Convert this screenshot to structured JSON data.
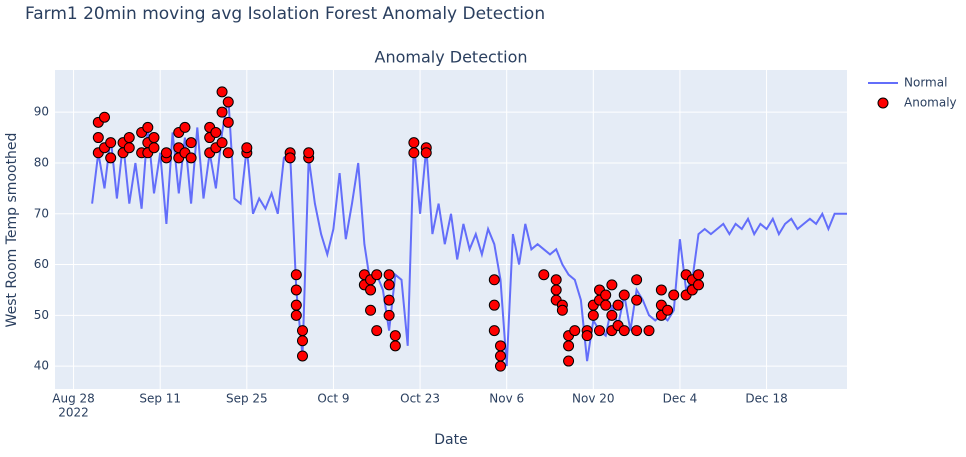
{
  "title": "Farm1 20min moving avg Isolation Forest Anomaly Detection",
  "chart_data": {
    "type": "line",
    "title": "Anomaly Detection",
    "x_label": "Date",
    "y_label": "West Room Temp smoothed",
    "xlim": [
      "2022-08-25",
      "2022-12-31"
    ],
    "ylim": [
      35.5,
      98.3
    ],
    "xticks": [
      {
        "value": "2022-08-28",
        "label": "Aug 28"
      },
      {
        "value": "2022-09-11",
        "label": "Sep 11"
      },
      {
        "value": "2022-09-25",
        "label": "Sep 25"
      },
      {
        "value": "2022-10-09",
        "label": "Oct 9"
      },
      {
        "value": "2022-10-23",
        "label": "Oct 23"
      },
      {
        "value": "2022-11-06",
        "label": "Nov 6"
      },
      {
        "value": "2022-11-20",
        "label": "Nov 20"
      },
      {
        "value": "2022-12-04",
        "label": "Dec 4"
      },
      {
        "value": "2022-12-18",
        "label": "Dec 18"
      }
    ],
    "x_tick_year": "2022",
    "yticks": [
      40,
      50,
      60,
      70,
      80,
      90
    ],
    "grid": true,
    "legend": "top-right",
    "series": [
      {
        "name": "Normal",
        "color": "#636efa",
        "mode": "lines",
        "x": [
          "2022-08-31",
          "2022-09-01",
          "2022-09-02",
          "2022-09-03",
          "2022-09-04",
          "2022-09-05",
          "2022-09-06",
          "2022-09-07",
          "2022-09-08",
          "2022-09-09",
          "2022-09-10",
          "2022-09-11",
          "2022-09-12",
          "2022-09-13",
          "2022-09-14",
          "2022-09-15",
          "2022-09-16",
          "2022-09-17",
          "2022-09-18",
          "2022-09-19",
          "2022-09-20",
          "2022-09-21",
          "2022-09-22",
          "2022-09-23",
          "2022-09-24",
          "2022-09-25",
          "2022-09-26",
          "2022-09-27",
          "2022-09-28",
          "2022-09-29",
          "2022-09-30",
          "2022-10-01",
          "2022-10-02",
          "2022-10-03",
          "2022-10-04",
          "2022-10-05",
          "2022-10-06",
          "2022-10-07",
          "2022-10-08",
          "2022-10-09",
          "2022-10-10",
          "2022-10-11",
          "2022-10-12",
          "2022-10-13",
          "2022-10-14",
          "2022-10-15",
          "2022-10-16",
          "2022-10-17",
          "2022-10-18",
          "2022-10-19",
          "2022-10-20",
          "2022-10-21",
          "2022-10-22",
          "2022-10-23",
          "2022-10-24",
          "2022-10-25",
          "2022-10-26",
          "2022-10-27",
          "2022-10-28",
          "2022-10-29",
          "2022-10-30",
          "2022-10-31",
          "2022-11-01",
          "2022-11-02",
          "2022-11-03",
          "2022-11-04",
          "2022-11-05",
          "2022-11-06",
          "2022-11-07",
          "2022-11-08",
          "2022-11-09",
          "2022-11-10",
          "2022-11-11",
          "2022-11-12",
          "2022-11-13",
          "2022-11-14",
          "2022-11-15",
          "2022-11-16",
          "2022-11-17",
          "2022-11-18",
          "2022-11-19",
          "2022-11-20",
          "2022-11-21",
          "2022-11-22",
          "2022-11-23",
          "2022-11-24",
          "2022-11-25",
          "2022-11-26",
          "2022-11-27",
          "2022-11-28",
          "2022-11-29",
          "2022-11-30",
          "2022-12-01",
          "2022-12-02",
          "2022-12-03",
          "2022-12-04",
          "2022-12-05",
          "2022-12-06",
          "2022-12-07",
          "2022-12-08",
          "2022-12-09",
          "2022-12-10",
          "2022-12-11",
          "2022-12-12",
          "2022-12-13",
          "2022-12-14",
          "2022-12-15",
          "2022-12-16",
          "2022-12-17",
          "2022-12-18",
          "2022-12-19",
          "2022-12-20",
          "2022-12-21",
          "2022-12-22",
          "2022-12-23",
          "2022-12-24",
          "2022-12-25",
          "2022-12-26",
          "2022-12-27",
          "2022-12-28",
          "2022-12-29",
          "2022-12-30",
          "2022-12-31"
        ],
        "values": [
          72,
          82,
          75,
          85,
          73,
          84,
          72,
          80,
          71,
          87,
          74,
          82,
          68,
          86,
          74,
          85,
          72,
          87,
          73,
          82,
          75,
          86,
          93,
          73,
          72,
          83,
          70,
          73,
          71,
          74,
          70,
          81,
          82,
          55,
          42,
          81,
          72,
          66,
          62,
          67,
          78,
          65,
          72,
          80,
          64,
          56,
          58,
          55,
          47,
          58,
          57,
          44,
          84,
          70,
          83,
          66,
          72,
          64,
          70,
          61,
          68,
          63,
          66,
          62,
          67,
          64,
          57,
          40,
          66,
          60,
          68,
          63,
          64,
          63,
          62,
          63,
          60,
          58,
          57,
          53,
          41,
          49,
          47,
          46,
          52,
          48,
          54,
          47,
          55,
          53,
          50,
          49,
          50,
          49,
          51,
          65,
          55,
          57,
          66,
          67,
          66,
          67,
          68,
          66,
          68,
          67,
          69,
          66,
          68,
          67,
          69,
          66,
          68,
          69,
          67,
          68,
          69,
          68,
          70,
          67,
          70,
          70,
          70
        ]
      },
      {
        "name": "Anomaly",
        "color": "#ff0000",
        "mode": "markers",
        "x": [
          "2022-09-01",
          "2022-09-01",
          "2022-09-01",
          "2022-09-02",
          "2022-09-02",
          "2022-09-03",
          "2022-09-03",
          "2022-09-05",
          "2022-09-05",
          "2022-09-06",
          "2022-09-06",
          "2022-09-08",
          "2022-09-08",
          "2022-09-09",
          "2022-09-09",
          "2022-09-09",
          "2022-09-10",
          "2022-09-10",
          "2022-09-12",
          "2022-09-12",
          "2022-09-14",
          "2022-09-14",
          "2022-09-14",
          "2022-09-15",
          "2022-09-15",
          "2022-09-16",
          "2022-09-16",
          "2022-09-19",
          "2022-09-19",
          "2022-09-19",
          "2022-09-20",
          "2022-09-20",
          "2022-09-21",
          "2022-09-21",
          "2022-09-21",
          "2022-09-22",
          "2022-09-22",
          "2022-09-22",
          "2022-09-25",
          "2022-09-25",
          "2022-10-02",
          "2022-10-02",
          "2022-10-03",
          "2022-10-03",
          "2022-10-03",
          "2022-10-03",
          "2022-10-04",
          "2022-10-04",
          "2022-10-04",
          "2022-10-05",
          "2022-10-05",
          "2022-10-14",
          "2022-10-14",
          "2022-10-15",
          "2022-10-15",
          "2022-10-15",
          "2022-10-16",
          "2022-10-16",
          "2022-10-18",
          "2022-10-18",
          "2022-10-18",
          "2022-10-18",
          "2022-10-19",
          "2022-10-19",
          "2022-10-22",
          "2022-10-22",
          "2022-10-24",
          "2022-10-24",
          "2022-11-04",
          "2022-11-04",
          "2022-11-04",
          "2022-11-05",
          "2022-11-05",
          "2022-11-05",
          "2022-11-12",
          "2022-11-14",
          "2022-11-14",
          "2022-11-14",
          "2022-11-15",
          "2022-11-15",
          "2022-11-16",
          "2022-11-16",
          "2022-11-16",
          "2022-11-17",
          "2022-11-19",
          "2022-11-19",
          "2022-11-20",
          "2022-11-20",
          "2022-11-21",
          "2022-11-21",
          "2022-11-21",
          "2022-11-22",
          "2022-11-22",
          "2022-11-23",
          "2022-11-23",
          "2022-11-23",
          "2022-11-24",
          "2022-11-24",
          "2022-11-25",
          "2022-11-25",
          "2022-11-27",
          "2022-11-27",
          "2022-11-27",
          "2022-11-29",
          "2022-12-01",
          "2022-12-01",
          "2022-12-01",
          "2022-12-02",
          "2022-12-03",
          "2022-12-05",
          "2022-12-05",
          "2022-12-06",
          "2022-12-06",
          "2022-12-07",
          "2022-12-07"
        ],
        "values": [
          82,
          85,
          88,
          83,
          89,
          81,
          84,
          82,
          84,
          85,
          83,
          82,
          86,
          84,
          87,
          82,
          83,
          85,
          81,
          82,
          81,
          83,
          86,
          82,
          87,
          81,
          84,
          82,
          85,
          87,
          83,
          86,
          84,
          90,
          94,
          82,
          88,
          92,
          82,
          83,
          82,
          81,
          58,
          55,
          52,
          50,
          47,
          45,
          42,
          81,
          82,
          58,
          56,
          57,
          55,
          51,
          47,
          58,
          58,
          56,
          53,
          50,
          46,
          44,
          84,
          82,
          83,
          82,
          57,
          52,
          47,
          44,
          42,
          40,
          58,
          57,
          55,
          53,
          52,
          51,
          46,
          44,
          41,
          47,
          47,
          46,
          52,
          50,
          55,
          53,
          47,
          54,
          52,
          56,
          50,
          47,
          52,
          48,
          54,
          47,
          47,
          57,
          53,
          47,
          55,
          52,
          50,
          51,
          54,
          58,
          54,
          57,
          55,
          58,
          56
        ]
      }
    ]
  }
}
